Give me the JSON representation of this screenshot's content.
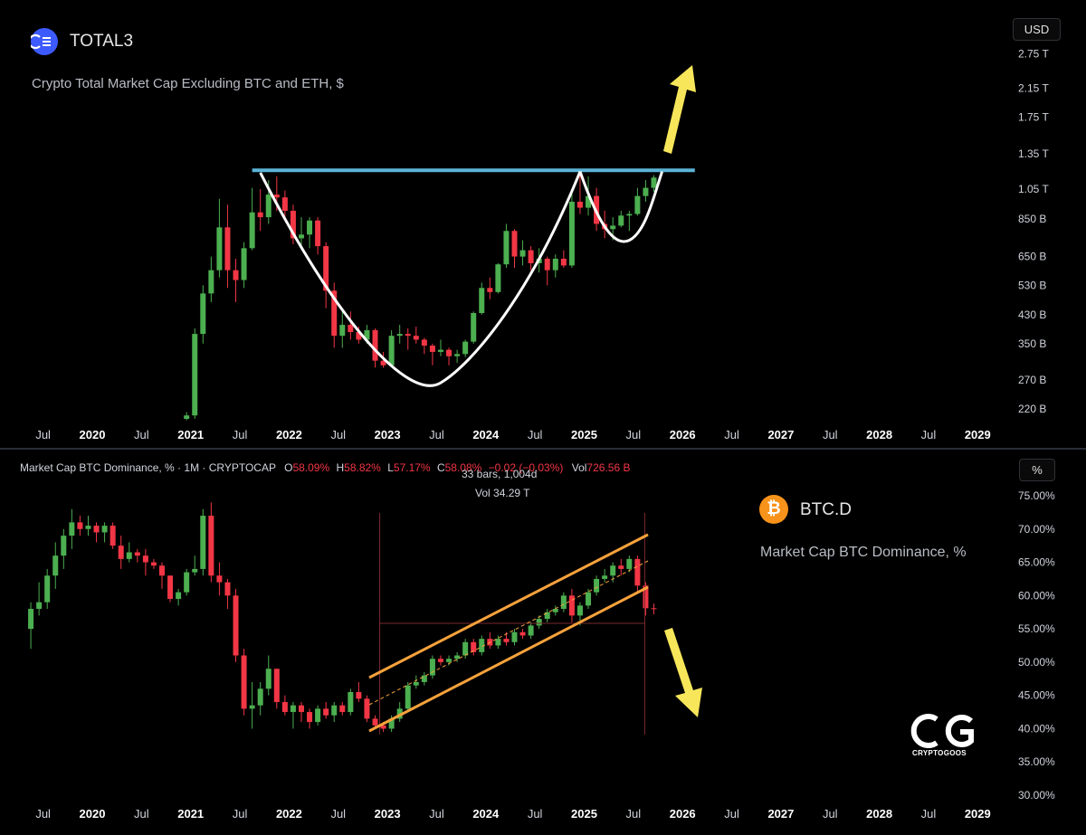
{
  "top": {
    "symbol": "TOTAL3",
    "description": "Crypto Total Market Cap Excluding BTC and ETH, $",
    "unit": "USD",
    "icon": "total3-logo-icon"
  },
  "bottom": {
    "header": {
      "name": "Market Cap BTC Dominance, % · 1M · CRYPTOCAP",
      "o_label": "O",
      "o": "58.09%",
      "h_label": "H",
      "h": "58.82%",
      "l_label": "L",
      "l": "57.17%",
      "c_label": "C",
      "c": "58.08%",
      "change": "−0.02 (−0.03%)",
      "vol_label": "Vol",
      "vol": "726.56 B"
    },
    "measure": {
      "bars": "33 bars, 1,004d",
      "vol": "Vol 34.29 T"
    },
    "symbol": "BTC.D",
    "description": "Market Cap BTC Dominance, %",
    "unit": "%",
    "icon": "bitcoin-icon"
  },
  "watermark": "CRYPTOGOOS",
  "colors": {
    "up": "#4caf50",
    "down": "#f23645",
    "resistance": "#5ab4d6",
    "channel": "#f7a23b",
    "arrow": "#f7e65a"
  },
  "chart_data": [
    {
      "type": "candlestick",
      "title": "TOTAL3",
      "scale": "log",
      "y_ticks": [
        "2.75 T",
        "2.15 T",
        "1.75 T",
        "1.35 T",
        "1.05 T",
        "850 B",
        "650 B",
        "530 B",
        "430 B",
        "350 B",
        "270 B",
        "220 B"
      ],
      "x_ticks": [
        "Jul",
        "2020",
        "Jul",
        "2021",
        "Jul",
        "2022",
        "Jul",
        "2023",
        "Jul",
        "2024",
        "Jul",
        "2025",
        "Jul",
        "2026",
        "Jul",
        "2027",
        "Jul",
        "2028",
        "Jul",
        "2029"
      ],
      "annotations": [
        "cup-and-handle pattern",
        "horizontal resistance ~1.2 T",
        "breakout arrow up"
      ],
      "candles": [
        {
          "t": "2020-12",
          "o": 205,
          "h": 215,
          "l": 203,
          "c": 210
        },
        {
          "t": "2021-01",
          "o": 210,
          "h": 390,
          "l": 205,
          "c": 375
        },
        {
          "t": "2021-02",
          "o": 375,
          "h": 530,
          "l": 350,
          "c": 500
        },
        {
          "t": "2021-03",
          "o": 500,
          "h": 650,
          "l": 470,
          "c": 590
        },
        {
          "t": "2021-04",
          "o": 590,
          "h": 980,
          "l": 560,
          "c": 800
        },
        {
          "t": "2021-05",
          "o": 800,
          "h": 940,
          "l": 520,
          "c": 590
        },
        {
          "t": "2021-06",
          "o": 590,
          "h": 640,
          "l": 470,
          "c": 550
        },
        {
          "t": "2021-07",
          "o": 550,
          "h": 720,
          "l": 520,
          "c": 690
        },
        {
          "t": "2021-08",
          "o": 690,
          "h": 1060,
          "l": 680,
          "c": 890
        },
        {
          "t": "2021-09",
          "o": 890,
          "h": 1050,
          "l": 780,
          "c": 860
        },
        {
          "t": "2021-10",
          "o": 860,
          "h": 1120,
          "l": 820,
          "c": 1010
        },
        {
          "t": "2021-11",
          "o": 1010,
          "h": 1150,
          "l": 900,
          "c": 990
        },
        {
          "t": "2021-12",
          "o": 990,
          "h": 1040,
          "l": 860,
          "c": 900
        },
        {
          "t": "2022-01",
          "o": 900,
          "h": 940,
          "l": 710,
          "c": 740
        },
        {
          "t": "2022-02",
          "o": 740,
          "h": 860,
          "l": 700,
          "c": 760
        },
        {
          "t": "2022-03",
          "o": 760,
          "h": 860,
          "l": 690,
          "c": 840
        },
        {
          "t": "2022-04",
          "o": 840,
          "h": 860,
          "l": 660,
          "c": 700
        },
        {
          "t": "2022-05",
          "o": 700,
          "h": 720,
          "l": 450,
          "c": 510
        },
        {
          "t": "2022-06",
          "o": 510,
          "h": 540,
          "l": 340,
          "c": 370
        },
        {
          "t": "2022-07",
          "o": 370,
          "h": 440,
          "l": 340,
          "c": 400
        },
        {
          "t": "2022-08",
          "o": 400,
          "h": 440,
          "l": 360,
          "c": 380
        },
        {
          "t": "2022-09",
          "o": 380,
          "h": 395,
          "l": 350,
          "c": 360
        },
        {
          "t": "2022-10",
          "o": 360,
          "h": 400,
          "l": 350,
          "c": 385
        },
        {
          "t": "2022-11",
          "o": 385,
          "h": 390,
          "l": 295,
          "c": 310
        },
        {
          "t": "2022-12",
          "o": 310,
          "h": 330,
          "l": 295,
          "c": 300
        },
        {
          "t": "2023-01",
          "o": 300,
          "h": 385,
          "l": 298,
          "c": 370
        },
        {
          "t": "2023-02",
          "o": 370,
          "h": 400,
          "l": 350,
          "c": 375
        },
        {
          "t": "2023-03",
          "o": 375,
          "h": 390,
          "l": 335,
          "c": 370
        },
        {
          "t": "2023-04",
          "o": 370,
          "h": 395,
          "l": 350,
          "c": 360
        },
        {
          "t": "2023-05",
          "o": 360,
          "h": 365,
          "l": 325,
          "c": 345
        },
        {
          "t": "2023-06",
          "o": 345,
          "h": 350,
          "l": 300,
          "c": 330
        },
        {
          "t": "2023-07",
          "o": 330,
          "h": 360,
          "l": 320,
          "c": 335
        },
        {
          "t": "2023-08",
          "o": 335,
          "h": 340,
          "l": 300,
          "c": 320
        },
        {
          "t": "2023-09",
          "o": 320,
          "h": 335,
          "l": 305,
          "c": 325
        },
        {
          "t": "2023-10",
          "o": 325,
          "h": 360,
          "l": 318,
          "c": 355
        },
        {
          "t": "2023-11",
          "o": 355,
          "h": 440,
          "l": 350,
          "c": 435
        },
        {
          "t": "2023-12",
          "o": 435,
          "h": 540,
          "l": 430,
          "c": 520
        },
        {
          "t": "2024-01",
          "o": 520,
          "h": 560,
          "l": 480,
          "c": 505
        },
        {
          "t": "2024-02",
          "o": 505,
          "h": 620,
          "l": 500,
          "c": 615
        },
        {
          "t": "2024-03",
          "o": 615,
          "h": 820,
          "l": 600,
          "c": 780
        },
        {
          "t": "2024-04",
          "o": 780,
          "h": 790,
          "l": 600,
          "c": 650
        },
        {
          "t": "2024-05",
          "o": 650,
          "h": 730,
          "l": 610,
          "c": 680
        },
        {
          "t": "2024-06",
          "o": 680,
          "h": 700,
          "l": 590,
          "c": 620
        },
        {
          "t": "2024-07",
          "o": 620,
          "h": 690,
          "l": 580,
          "c": 640
        },
        {
          "t": "2024-08",
          "o": 640,
          "h": 650,
          "l": 530,
          "c": 590
        },
        {
          "t": "2024-09",
          "o": 590,
          "h": 660,
          "l": 560,
          "c": 640
        },
        {
          "t": "2024-10",
          "o": 640,
          "h": 680,
          "l": 600,
          "c": 610
        },
        {
          "t": "2024-11",
          "o": 610,
          "h": 1020,
          "l": 600,
          "c": 960
        },
        {
          "t": "2024-12",
          "o": 960,
          "h": 1200,
          "l": 880,
          "c": 920
        },
        {
          "t": "2025-01",
          "o": 920,
          "h": 1150,
          "l": 870,
          "c": 1000
        },
        {
          "t": "2025-02",
          "o": 1000,
          "h": 1060,
          "l": 780,
          "c": 820
        },
        {
          "t": "2025-03",
          "o": 820,
          "h": 900,
          "l": 740,
          "c": 790
        },
        {
          "t": "2025-04",
          "o": 790,
          "h": 860,
          "l": 730,
          "c": 810
        },
        {
          "t": "2025-05",
          "o": 810,
          "h": 900,
          "l": 800,
          "c": 870
        },
        {
          "t": "2025-06",
          "o": 870,
          "h": 900,
          "l": 780,
          "c": 880
        },
        {
          "t": "2025-07",
          "o": 880,
          "h": 1060,
          "l": 870,
          "c": 1000
        },
        {
          "t": "2025-08",
          "o": 1000,
          "h": 1120,
          "l": 960,
          "c": 1060
        },
        {
          "t": "2025-09",
          "o": 1060,
          "h": 1160,
          "l": 1030,
          "c": 1140
        }
      ]
    },
    {
      "type": "candlestick",
      "title": "BTC.D",
      "scale": "linear",
      "y_ticks": [
        "75.00%",
        "70.00%",
        "65.00%",
        "60.00%",
        "55.00%",
        "50.00%",
        "45.00%",
        "40.00%",
        "35.00%",
        "30.00%"
      ],
      "x_ticks": [
        "Jul",
        "2020",
        "Jul",
        "2021",
        "Jul",
        "2022",
        "Jul",
        "2023",
        "Jul",
        "2024",
        "Jul",
        "2025",
        "Jul",
        "2026",
        "Jul",
        "2027",
        "Jul",
        "2028",
        "Jul",
        "2029"
      ],
      "annotations": [
        "rising channel",
        "breakdown below channel",
        "arrow down"
      ],
      "candles": [
        {
          "t": "2019-05",
          "o": 55,
          "h": 59,
          "l": 52,
          "c": 58
        },
        {
          "t": "2019-06",
          "o": 58,
          "h": 62,
          "l": 57,
          "c": 59
        },
        {
          "t": "2019-07",
          "o": 59,
          "h": 64,
          "l": 58,
          "c": 63
        },
        {
          "t": "2019-08",
          "o": 63,
          "h": 68,
          "l": 61,
          "c": 66
        },
        {
          "t": "2019-09",
          "o": 66,
          "h": 70,
          "l": 64,
          "c": 69
        },
        {
          "t": "2019-10",
          "o": 69,
          "h": 73,
          "l": 67,
          "c": 71
        },
        {
          "t": "2019-11",
          "o": 71,
          "h": 72,
          "l": 69,
          "c": 70
        },
        {
          "t": "2019-12",
          "o": 70,
          "h": 72,
          "l": 69,
          "c": 70.5
        },
        {
          "t": "2020-01",
          "o": 70.5,
          "h": 71,
          "l": 68,
          "c": 69.5
        },
        {
          "t": "2020-02",
          "o": 69.5,
          "h": 71,
          "l": 68,
          "c": 70.5
        },
        {
          "t": "2020-03",
          "o": 70.5,
          "h": 71,
          "l": 67,
          "c": 67.5
        },
        {
          "t": "2020-04",
          "o": 67.5,
          "h": 69,
          "l": 64,
          "c": 65.5
        },
        {
          "t": "2020-05",
          "o": 65.5,
          "h": 68,
          "l": 65,
          "c": 66.5
        },
        {
          "t": "2020-06",
          "o": 66.5,
          "h": 67,
          "l": 65,
          "c": 66
        },
        {
          "t": "2020-07",
          "o": 66,
          "h": 67,
          "l": 63,
          "c": 65
        },
        {
          "t": "2020-08",
          "o": 65,
          "h": 65.5,
          "l": 64,
          "c": 64.5
        },
        {
          "t": "2020-09",
          "o": 64.5,
          "h": 65,
          "l": 61,
          "c": 63
        },
        {
          "t": "2020-10",
          "o": 63,
          "h": 63,
          "l": 59,
          "c": 59.5
        },
        {
          "t": "2020-11",
          "o": 59.5,
          "h": 61,
          "l": 58.5,
          "c": 60.5
        },
        {
          "t": "2020-12",
          "o": 60.5,
          "h": 64,
          "l": 60,
          "c": 63.5
        },
        {
          "t": "2021-01",
          "o": 63.5,
          "h": 66,
          "l": 63,
          "c": 64
        },
        {
          "t": "2021-02",
          "o": 64,
          "h": 73,
          "l": 63,
          "c": 72
        },
        {
          "t": "2021-03",
          "o": 72,
          "h": 74,
          "l": 62,
          "c": 63
        },
        {
          "t": "2021-04",
          "o": 63,
          "h": 65,
          "l": 60,
          "c": 62
        },
        {
          "t": "2021-05",
          "o": 62,
          "h": 62.5,
          "l": 58,
          "c": 60
        },
        {
          "t": "2021-06",
          "o": 60,
          "h": 61,
          "l": 50,
          "c": 51
        },
        {
          "t": "2021-07",
          "o": 51,
          "h": 52,
          "l": 42,
          "c": 43
        },
        {
          "t": "2021-08",
          "o": 43,
          "h": 47,
          "l": 40,
          "c": 43.5
        },
        {
          "t": "2021-09",
          "o": 43.5,
          "h": 47,
          "l": 42,
          "c": 46
        },
        {
          "t": "2021-10",
          "o": 46,
          "h": 51,
          "l": 45,
          "c": 49
        },
        {
          "t": "2021-11",
          "o": 49,
          "h": 49,
          "l": 43,
          "c": 44
        },
        {
          "t": "2021-12",
          "o": 44,
          "h": 45,
          "l": 42,
          "c": 42.5
        },
        {
          "t": "2022-01",
          "o": 42.5,
          "h": 44,
          "l": 40,
          "c": 43.5
        },
        {
          "t": "2022-02",
          "o": 43.5,
          "h": 44,
          "l": 41,
          "c": 42.5
        },
        {
          "t": "2022-03",
          "o": 42.5,
          "h": 43,
          "l": 40,
          "c": 41
        },
        {
          "t": "2022-04",
          "o": 41,
          "h": 43.5,
          "l": 40.5,
          "c": 43
        },
        {
          "t": "2022-05",
          "o": 43,
          "h": 44,
          "l": 41.5,
          "c": 42
        },
        {
          "t": "2022-06",
          "o": 42,
          "h": 44,
          "l": 41,
          "c": 43.5
        },
        {
          "t": "2022-07",
          "o": 43.5,
          "h": 44,
          "l": 42,
          "c": 42.5
        },
        {
          "t": "2022-08",
          "o": 42.5,
          "h": 46,
          "l": 42,
          "c": 45.5
        },
        {
          "t": "2022-09",
          "o": 45.5,
          "h": 47,
          "l": 44,
          "c": 44.5
        },
        {
          "t": "2022-10",
          "o": 44.5,
          "h": 45,
          "l": 41,
          "c": 41.5
        },
        {
          "t": "2022-11",
          "o": 41.5,
          "h": 42,
          "l": 40,
          "c": 40.5
        },
        {
          "t": "2022-12",
          "o": 40.5,
          "h": 41,
          "l": 39.5,
          "c": 40
        },
        {
          "t": "2023-01",
          "o": 40,
          "h": 42,
          "l": 39.5,
          "c": 41.5
        },
        {
          "t": "2023-02",
          "o": 41.5,
          "h": 44,
          "l": 41,
          "c": 43
        },
        {
          "t": "2023-03",
          "o": 43,
          "h": 47,
          "l": 42.5,
          "c": 46.5
        },
        {
          "t": "2023-04",
          "o": 46.5,
          "h": 48,
          "l": 46,
          "c": 47
        },
        {
          "t": "2023-05",
          "o": 47,
          "h": 48.5,
          "l": 46.5,
          "c": 48
        },
        {
          "t": "2023-06",
          "o": 48,
          "h": 51,
          "l": 47.5,
          "c": 50.5
        },
        {
          "t": "2023-07",
          "o": 50.5,
          "h": 51,
          "l": 49.5,
          "c": 50
        },
        {
          "t": "2023-08",
          "o": 50,
          "h": 51,
          "l": 49.5,
          "c": 50.5
        },
        {
          "t": "2023-09",
          "o": 50.5,
          "h": 51.5,
          "l": 50,
          "c": 51
        },
        {
          "t": "2023-10",
          "o": 51,
          "h": 53.5,
          "l": 50.5,
          "c": 53
        },
        {
          "t": "2023-11",
          "o": 53,
          "h": 53.5,
          "l": 51,
          "c": 51.5
        },
        {
          "t": "2023-12",
          "o": 51.5,
          "h": 54,
          "l": 51,
          "c": 53.5
        },
        {
          "t": "2024-01",
          "o": 53.5,
          "h": 54.5,
          "l": 52,
          "c": 52.5
        },
        {
          "t": "2024-02",
          "o": 52.5,
          "h": 54,
          "l": 52,
          "c": 53.5
        },
        {
          "t": "2024-03",
          "o": 53.5,
          "h": 54.5,
          "l": 52.5,
          "c": 53
        },
        {
          "t": "2024-04",
          "o": 53,
          "h": 55,
          "l": 52.5,
          "c": 54.5
        },
        {
          "t": "2024-05",
          "o": 54.5,
          "h": 55,
          "l": 53.5,
          "c": 54
        },
        {
          "t": "2024-06",
          "o": 54,
          "h": 56,
          "l": 53.5,
          "c": 55.5
        },
        {
          "t": "2024-07",
          "o": 55.5,
          "h": 57,
          "l": 55,
          "c": 56.5
        },
        {
          "t": "2024-08",
          "o": 56.5,
          "h": 58,
          "l": 56,
          "c": 57.5
        },
        {
          "t": "2024-09",
          "o": 57.5,
          "h": 58.5,
          "l": 57,
          "c": 58
        },
        {
          "t": "2024-10",
          "o": 58,
          "h": 60.5,
          "l": 57.5,
          "c": 60
        },
        {
          "t": "2024-11",
          "o": 60,
          "h": 61,
          "l": 56,
          "c": 57
        },
        {
          "t": "2024-12",
          "o": 57,
          "h": 59,
          "l": 55.5,
          "c": 58.5
        },
        {
          "t": "2025-01",
          "o": 58.5,
          "h": 61,
          "l": 58,
          "c": 60.5
        },
        {
          "t": "2025-02",
          "o": 60.5,
          "h": 63,
          "l": 60,
          "c": 62.5
        },
        {
          "t": "2025-03",
          "o": 62.5,
          "h": 64,
          "l": 62,
          "c": 63
        },
        {
          "t": "2025-04",
          "o": 63,
          "h": 65,
          "l": 62,
          "c": 64.5
        },
        {
          "t": "2025-05",
          "o": 64.5,
          "h": 65.5,
          "l": 63,
          "c": 64
        },
        {
          "t": "2025-06",
          "o": 64,
          "h": 66,
          "l": 63.5,
          "c": 65.5
        },
        {
          "t": "2025-07",
          "o": 65.5,
          "h": 66,
          "l": 60.5,
          "c": 61.5
        },
        {
          "t": "2025-08",
          "o": 61.5,
          "h": 62,
          "l": 57,
          "c": 58.1
        },
        {
          "t": "2025-09",
          "o": 58.1,
          "h": 58.8,
          "l": 57.2,
          "c": 58.08
        }
      ]
    }
  ]
}
